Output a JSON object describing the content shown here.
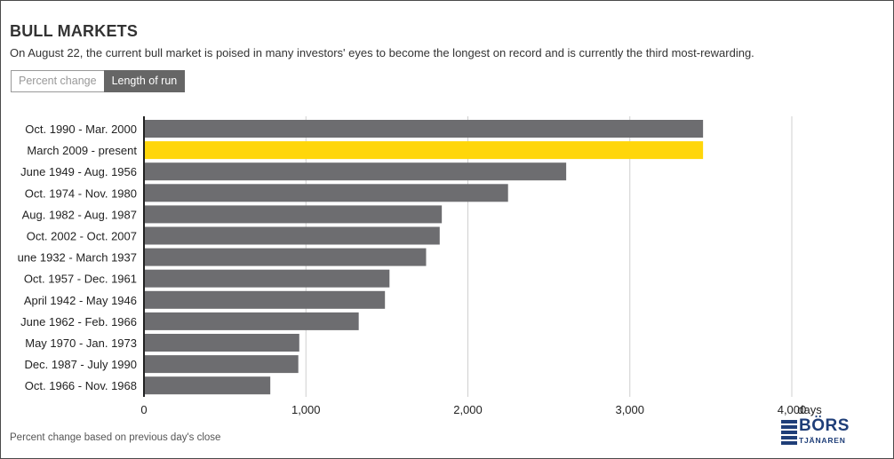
{
  "header": {
    "title": "BULL MARKETS",
    "subtitle": "On August 22, the current bull market is poised in many investors' eyes to become the longest on record and is currently the third most-rewarding."
  },
  "toggle": {
    "option_percent": "Percent change",
    "option_length": "Length of run",
    "selected": "Length of run"
  },
  "chart_data": {
    "type": "bar",
    "orientation": "horizontal",
    "categories": [
      "Oct. 1990 - Mar. 2000",
      "March 2009 - present",
      "June 1949 - Aug. 1956",
      "Oct. 1974 - Nov. 1980",
      "Aug. 1982 - Aug. 1987",
      "Oct. 2002 - Oct. 2007",
      "une 1932 - March 1937",
      "Oct. 1957 - Dec. 1961",
      "April 1942 - May 1946",
      "June 1962 - Feb. 1966",
      "May 1970 - Jan. 1973",
      "Dec. 1987 - July 1990",
      "Oct. 1966 - Nov. 1968"
    ],
    "values": [
      3452,
      3452,
      2607,
      2248,
      1839,
      1826,
      1742,
      1516,
      1488,
      1326,
      959,
      953,
      780
    ],
    "highlight_index": 1,
    "colors": {
      "bar": "#6d6d70",
      "highlight": "#ffd60a",
      "grid": "#cfcfcf",
      "axis": "#222222"
    },
    "xlim": [
      0,
      4000
    ],
    "xticks": [
      0,
      1000,
      2000,
      3000,
      4000
    ],
    "xtick_labels": [
      "0",
      "1,000",
      "2,000",
      "3,000",
      "4,000"
    ],
    "xunit": "days",
    "grid": true
  },
  "footer": {
    "footnote": "Percent change based on previous day's close",
    "logo_text": "BÖRS",
    "logo_subtext": "TJÄNAREN"
  }
}
